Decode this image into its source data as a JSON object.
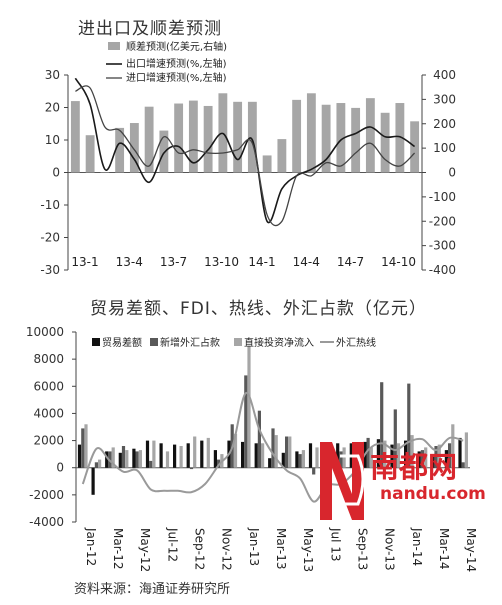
{
  "chart_data": [
    {
      "type": "bar",
      "title": "进出口及顺差预测",
      "legend": [
        "顺差预测(亿美元,右轴)",
        "出口增速预测(%,左轴)",
        "进口增速预测(%,左轴)"
      ],
      "categories": [
        "13-1",
        "13-2",
        "13-3",
        "13-4",
        "13-5",
        "13-6",
        "13-7",
        "13-8",
        "13-9",
        "13-10",
        "13-11",
        "13-12",
        "14-1",
        "14-2",
        "14-3",
        "14-4",
        "14-5",
        "14-6",
        "14-7",
        "14-8",
        "14-9",
        "14-10",
        "14-11",
        "14-12"
      ],
      "x_tick_labels": [
        "13-1",
        "13-4",
        "13-7",
        "13-10",
        "14-1",
        "14-4",
        "14-7",
        "14-10"
      ],
      "ylim_left": [
        -30,
        30
      ],
      "yticks_left": [
        "30",
        "20",
        "10",
        "0",
        "-10",
        "-20",
        "-30"
      ],
      "ylim_right": [
        -400,
        400
      ],
      "yticks_right": [
        "400",
        "300",
        "200",
        "100",
        "0",
        "-100",
        "-200",
        "-300",
        "-400"
      ],
      "series": [
        {
          "name": "顺差预测(亿美元,右轴)",
          "axis": "right",
          "kind": "bar",
          "values": [
            293,
            153,
            0,
            183,
            203,
            270,
            172,
            283,
            295,
            273,
            325,
            290,
            290,
            70,
            137,
            298,
            325,
            278,
            285,
            265,
            305,
            245,
            285,
            210
          ]
        },
        {
          "name": "出口增速预测(%,左轴)",
          "axis": "left",
          "kind": "line",
          "values": [
            29,
            21,
            1,
            9,
            4,
            -3,
            6,
            8,
            3,
            7,
            12,
            4,
            10,
            -15,
            -5,
            -1,
            1,
            4,
            10,
            12,
            14,
            11,
            11,
            8
          ]
        },
        {
          "name": "进口增速预测(%,左轴)",
          "axis": "left",
          "kind": "line",
          "values": [
            25,
            26,
            14,
            13,
            7,
            2,
            11,
            6,
            7,
            6,
            6,
            7,
            9,
            -13,
            -15,
            -1,
            -1,
            3,
            2,
            6,
            9,
            4,
            2,
            6
          ]
        }
      ]
    },
    {
      "type": "bar",
      "title": "贸易差额、FDI、热线、外汇占款（亿元）",
      "legend": [
        "贸易差额",
        "新增外汇占款",
        "直接投资净流入",
        "外汇热线"
      ],
      "categories": [
        "Jan-12",
        "Feb-12",
        "Mar-12",
        "Apr-12",
        "May-12",
        "Jun-12",
        "Jul-12",
        "Aug-12",
        "Sep-12",
        "Oct-12",
        "Nov-12",
        "Dec-12",
        "Jan-13",
        "Feb-13",
        "Mar-13",
        "Apr-13",
        "May-13",
        "Jun-13",
        "Jul-13",
        "Aug-13",
        "Sep-13",
        "Oct-13",
        "Nov-13",
        "Dec-13",
        "Jan-14",
        "Feb-14",
        "Mar-14",
        "Apr-14",
        "May-14"
      ],
      "x_tick_labels": [
        "Jan-12",
        "Mar-12",
        "May-12",
        "Jul-12",
        "Sep-12",
        "Nov-12",
        "Jan-13",
        "Mar-13",
        "May-13",
        "Jul 13",
        "Sep-13",
        "Nov-13",
        "Jan-14",
        "Mar-14",
        "May-14"
      ],
      "ylim": [
        -4000,
        10000
      ],
      "yticks": [
        "10000",
        "8000",
        "6000",
        "4000",
        "2000",
        "0",
        "-2000",
        "-4000"
      ],
      "series": [
        {
          "name": "贸易差额",
          "values": [
            1700,
            -2000,
            1200,
            1100,
            1400,
            2000,
            1800,
            1700,
            1800,
            2000,
            1300,
            2000,
            1900,
            1800,
            700,
            1100,
            1200,
            1800,
            1100,
            1800,
            1800,
            1900,
            2100,
            1700,
            2000,
            1200,
            800,
            1300,
            2200
          ]
        },
        {
          "name": "新增外汇占款",
          "values": [
            2900,
            400,
            1200,
            1600,
            1200,
            500,
            0,
            0,
            -100,
            0,
            600,
            3200,
            6800,
            4200,
            2900,
            2300,
            1000,
            -500,
            200,
            1200,
            1600,
            2200,
            6300,
            4300,
            6200,
            1300,
            1600,
            1800,
            400
          ]
        },
        {
          "name": "直接投资净流入",
          "values": [
            3200,
            600,
            1500,
            1300,
            1300,
            2000,
            1200,
            1600,
            2300,
            2200,
            1000,
            2500,
            9000,
            1800,
            2400,
            2300,
            1300,
            1500,
            1400,
            1500,
            1700,
            1500,
            2000,
            1800,
            2400,
            1500,
            1700,
            3200,
            2600
          ]
        },
        {
          "name": "外汇热线",
          "values": [
            -1200,
            1400,
            500,
            -300,
            -200,
            -1600,
            -1700,
            -1700,
            -1800,
            -1200,
            200,
            1500,
            5500,
            2800,
            1000,
            -200,
            -800,
            -2500,
            -1300,
            -1200,
            -300,
            1300,
            1800,
            1300,
            1900,
            2100,
            1300,
            2200,
            2000
          ]
        }
      ]
    }
  ],
  "source_note": "资料来源：海通证券研究所",
  "watermark": {
    "cn": "南都网",
    "en": "nandu.com",
    "color": "#d8262d"
  }
}
